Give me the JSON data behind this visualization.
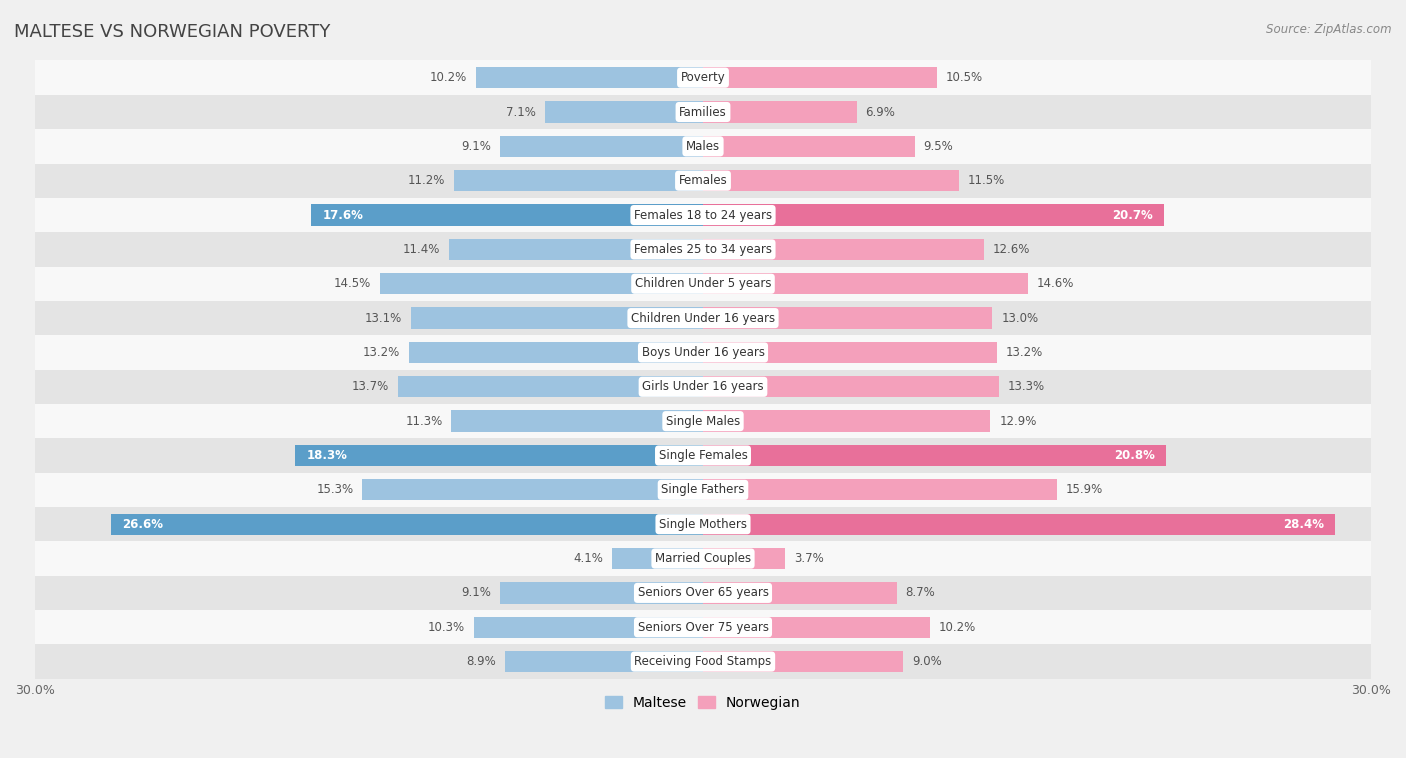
{
  "title": "MALTESE VS NORWEGIAN POVERTY",
  "source": "Source: ZipAtlas.com",
  "categories": [
    "Poverty",
    "Families",
    "Males",
    "Females",
    "Females 18 to 24 years",
    "Females 25 to 34 years",
    "Children Under 5 years",
    "Children Under 16 years",
    "Boys Under 16 years",
    "Girls Under 16 years",
    "Single Males",
    "Single Females",
    "Single Fathers",
    "Single Mothers",
    "Married Couples",
    "Seniors Over 65 years",
    "Seniors Over 75 years",
    "Receiving Food Stamps"
  ],
  "maltese": [
    10.2,
    7.1,
    9.1,
    11.2,
    17.6,
    11.4,
    14.5,
    13.1,
    13.2,
    13.7,
    11.3,
    18.3,
    15.3,
    26.6,
    4.1,
    9.1,
    10.3,
    8.9
  ],
  "norwegian": [
    10.5,
    6.9,
    9.5,
    11.5,
    20.7,
    12.6,
    14.6,
    13.0,
    13.2,
    13.3,
    12.9,
    20.8,
    15.9,
    28.4,
    3.7,
    8.7,
    10.2,
    9.0
  ],
  "maltese_color": "#9dc3e0",
  "norwegian_color": "#f4a0bb",
  "maltese_highlight_color": "#5b9ec9",
  "norwegian_highlight_color": "#e8709a",
  "highlight_rows": [
    4,
    11,
    13
  ],
  "xlim": 30.0,
  "bg_color": "#f0f0f0",
  "row_light_color": "#f8f8f8",
  "row_dark_color": "#e4e4e4",
  "label_fontsize": 8.5,
  "title_fontsize": 13,
  "value_fontsize": 8.5
}
